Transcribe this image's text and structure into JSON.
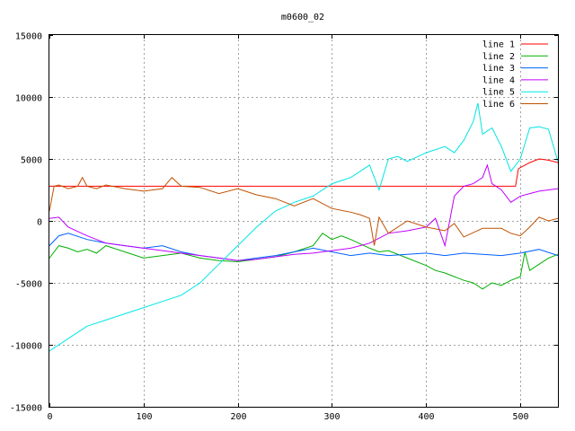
{
  "chart_data": {
    "type": "line",
    "title": "m0600_02",
    "xlabel": "",
    "ylabel": "",
    "xlim": [
      0,
      540
    ],
    "ylim": [
      -15000,
      15000
    ],
    "x_ticks": [
      0,
      100,
      200,
      300,
      400,
      500
    ],
    "y_ticks": [
      -15000,
      -10000,
      -5000,
      0,
      5000,
      10000,
      15000
    ],
    "grid": true,
    "legend_position": "top-right",
    "series": [
      {
        "name": "line 1",
        "color": "#ff0000",
        "x": [
          0,
          10,
          50,
          100,
          150,
          200,
          250,
          300,
          350,
          400,
          450,
          495,
          498,
          500,
          510,
          520,
          530,
          540
        ],
        "y": [
          2800,
          2800,
          2800,
          2800,
          2800,
          2800,
          2800,
          2800,
          2800,
          2800,
          2800,
          2800,
          4200,
          4300,
          4700,
          5000,
          4900,
          4700
        ]
      },
      {
        "name": "line 2",
        "color": "#00b000",
        "x": [
          0,
          10,
          20,
          30,
          40,
          50,
          60,
          80,
          100,
          120,
          140,
          160,
          180,
          200,
          220,
          240,
          260,
          280,
          290,
          300,
          310,
          320,
          340,
          350,
          360,
          380,
          400,
          410,
          420,
          430,
          440,
          450,
          460,
          470,
          480,
          490,
          500,
          505,
          510,
          520,
          530,
          540
        ],
        "y": [
          -3000,
          -2000,
          -2200,
          -2500,
          -2300,
          -2600,
          -2000,
          -2500,
          -3000,
          -2800,
          -2600,
          -3000,
          -3200,
          -3300,
          -3100,
          -2900,
          -2500,
          -2000,
          -1000,
          -1500,
          -1200,
          -1500,
          -2200,
          -2500,
          -2400,
          -3000,
          -3600,
          -4000,
          -4200,
          -4500,
          -4800,
          -5000,
          -5500,
          -5000,
          -5200,
          -4800,
          -4500,
          -2500,
          -4000,
          -3500,
          -3000,
          -2700
        ]
      },
      {
        "name": "line 3",
        "color": "#0060ff",
        "x": [
          0,
          10,
          20,
          40,
          60,
          80,
          100,
          120,
          140,
          160,
          180,
          200,
          220,
          240,
          260,
          280,
          300,
          320,
          340,
          360,
          380,
          400,
          420,
          440,
          460,
          480,
          500,
          520,
          540
        ],
        "y": [
          -2000,
          -1200,
          -1000,
          -1500,
          -1800,
          -2000,
          -2200,
          -2000,
          -2500,
          -2800,
          -3000,
          -3200,
          -3000,
          -2800,
          -2500,
          -2200,
          -2500,
          -2800,
          -2600,
          -2800,
          -2700,
          -2600,
          -2800,
          -2600,
          -2700,
          -2800,
          -2600,
          -2300,
          -2800
        ]
      },
      {
        "name": "line 4",
        "color": "#c000ff",
        "x": [
          0,
          10,
          20,
          40,
          60,
          80,
          100,
          120,
          140,
          160,
          180,
          200,
          220,
          240,
          260,
          280,
          300,
          320,
          340,
          360,
          380,
          400,
          410,
          420,
          425,
          430,
          440,
          450,
          460,
          465,
          470,
          480,
          490,
          500,
          510,
          520,
          530,
          540
        ],
        "y": [
          200,
          300,
          -500,
          -1200,
          -1800,
          -2000,
          -2200,
          -2400,
          -2600,
          -2800,
          -3000,
          -3200,
          -3100,
          -2900,
          -2700,
          -2600,
          -2400,
          -2200,
          -1800,
          -1000,
          -800,
          -500,
          200,
          -2000,
          0,
          2000,
          2800,
          3000,
          3500,
          4500,
          3000,
          2500,
          1500,
          2000,
          2200,
          2400,
          2500,
          2600
        ]
      },
      {
        "name": "line 5",
        "color": "#00e5e5",
        "x": [
          0,
          10,
          20,
          40,
          60,
          80,
          100,
          120,
          140,
          160,
          180,
          200,
          220,
          240,
          260,
          280,
          300,
          320,
          340,
          350,
          360,
          370,
          380,
          400,
          420,
          430,
          440,
          450,
          455,
          460,
          470,
          480,
          490,
          500,
          510,
          520,
          530,
          540
        ],
        "y": [
          -10500,
          -10000,
          -9500,
          -8500,
          -8000,
          -7500,
          -7000,
          -6500,
          -6000,
          -5000,
          -3500,
          -2000,
          -500,
          800,
          1500,
          2000,
          3000,
          3500,
          4500,
          2500,
          5000,
          5200,
          4800,
          5500,
          6000,
          5500,
          6500,
          8000,
          9500,
          7000,
          7500,
          6000,
          4000,
          5000,
          7500,
          7600,
          7400,
          4800
        ]
      },
      {
        "name": "line 6",
        "color": "#c05000",
        "x": [
          0,
          5,
          10,
          20,
          30,
          35,
          40,
          50,
          60,
          80,
          100,
          120,
          130,
          140,
          160,
          180,
          200,
          220,
          240,
          260,
          280,
          300,
          320,
          330,
          340,
          345,
          350,
          360,
          380,
          400,
          420,
          430,
          440,
          460,
          480,
          490,
          500,
          510,
          520,
          530,
          540
        ],
        "y": [
          800,
          2800,
          2900,
          2600,
          2800,
          3500,
          2800,
          2600,
          2900,
          2600,
          2400,
          2600,
          3500,
          2800,
          2700,
          2200,
          2600,
          2100,
          1800,
          1200,
          1800,
          1000,
          700,
          500,
          200,
          -2000,
          300,
          -1000,
          0,
          -500,
          -800,
          -200,
          -1300,
          -600,
          -600,
          -1000,
          -1200,
          -500,
          300,
          0,
          200
        ]
      }
    ]
  }
}
